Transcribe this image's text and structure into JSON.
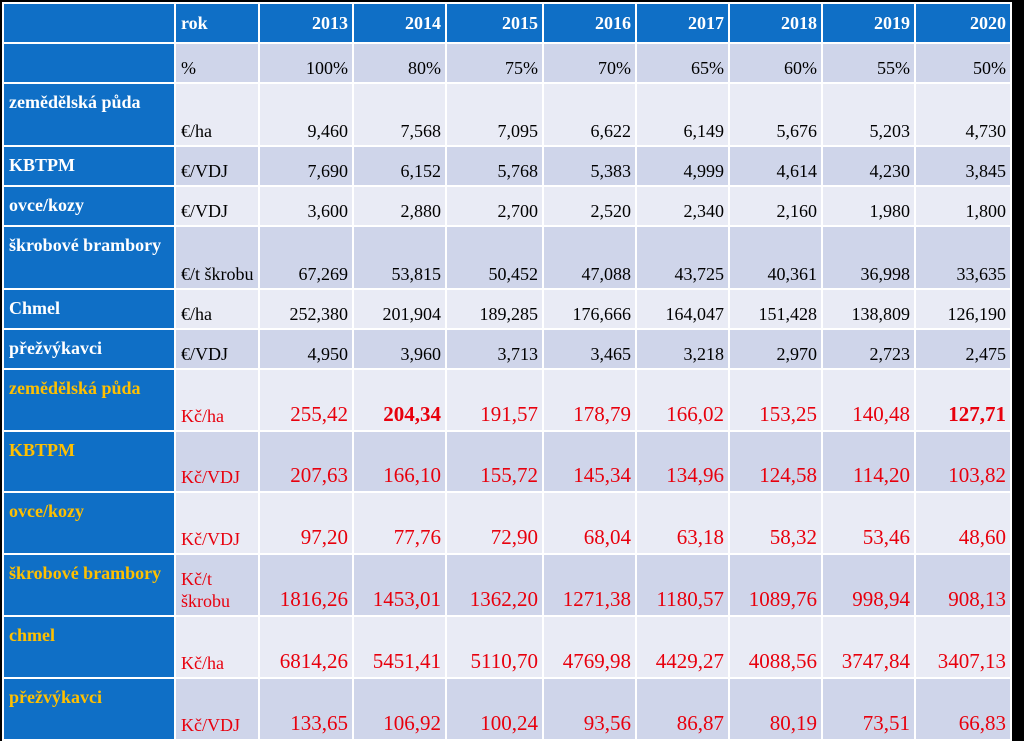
{
  "header": {
    "label": "",
    "unit": "rok",
    "years": [
      "2013",
      "2014",
      "2015",
      "2016",
      "2017",
      "2018",
      "2019",
      "2020"
    ]
  },
  "rows": [
    {
      "label": "",
      "unit": "%",
      "values": [
        "100%",
        "80%",
        "75%",
        "70%",
        "65%",
        "60%",
        "55%",
        "50%"
      ]
    },
    {
      "label": "zemědělská půda",
      "unit": "€/ha",
      "values": [
        "9,460",
        "7,568",
        "7,095",
        "6,622",
        "6,149",
        "5,676",
        "5,203",
        "4,730"
      ]
    },
    {
      "label": "KBTPM",
      "unit": "€/VDJ",
      "values": [
        "7,690",
        "6,152",
        "5,768",
        "5,383",
        "4,999",
        "4,614",
        "4,230",
        "3,845"
      ]
    },
    {
      "label": "ovce/kozy",
      "unit": "€/VDJ",
      "values": [
        "3,600",
        "2,880",
        "2,700",
        "2,520",
        "2,340",
        "2,160",
        "1,980",
        "1,800"
      ]
    },
    {
      "label": "škrobové brambory",
      "unit": "€/t škrobu",
      "values": [
        "67,269",
        "53,815",
        "50,452",
        "47,088",
        "43,725",
        "40,361",
        "36,998",
        "33,635"
      ]
    },
    {
      "label": "Chmel",
      "unit": "€/ha",
      "values": [
        "252,380",
        "201,904",
        "189,285",
        "176,666",
        "164,047",
        "151,428",
        "138,809",
        "126,190"
      ]
    },
    {
      "label": "přežvýkavci",
      "unit": "€/VDJ",
      "values": [
        "4,950",
        "3,960",
        "3,713",
        "3,465",
        "3,218",
        "2,970",
        "2,723",
        "2,475"
      ]
    },
    {
      "label": "zemědělská půda",
      "unit": "Kč/ha",
      "values": [
        "255,42",
        "204,34",
        "191,57",
        "178,79",
        "166,02",
        "153,25",
        "140,48",
        "127,71"
      ]
    },
    {
      "label": "KBTPM",
      "unit": "Kč/VDJ",
      "values": [
        "207,63",
        "166,10",
        "155,72",
        "145,34",
        "134,96",
        "124,58",
        "114,20",
        "103,82"
      ]
    },
    {
      "label": "ovce/kozy",
      "unit": "Kč/VDJ",
      "values": [
        "97,20",
        "77,76",
        "72,90",
        "68,04",
        "63,18",
        "58,32",
        "53,46",
        "48,60"
      ]
    },
    {
      "label": "škrobové brambory",
      "unit": "Kč/t škrobu",
      "values": [
        "1816,26",
        "1453,01",
        "1362,20",
        "1271,38",
        "1180,57",
        "1089,76",
        "998,94",
        "908,13"
      ]
    },
    {
      "label": "chmel",
      "unit": "Kč/ha",
      "values": [
        "6814,26",
        "5451,41",
        "5110,70",
        "4769,98",
        "4429,27",
        "4088,56",
        "3747,84",
        "3407,13"
      ]
    },
    {
      "label": "přežvýkavci",
      "unit": "Kč/VDJ",
      "values": [
        "133,65",
        "106,92",
        "100,24",
        "93,56",
        "86,87",
        "80,19",
        "73,51",
        "66,83"
      ]
    }
  ],
  "colors": {
    "label_bg": "#0f6fc6",
    "label_text": "#ffffff",
    "label_text_kc": "#ffc000",
    "row_odd": "#cfd5ea",
    "row_even": "#e9ebf5",
    "kc_values": "#e8000d"
  }
}
